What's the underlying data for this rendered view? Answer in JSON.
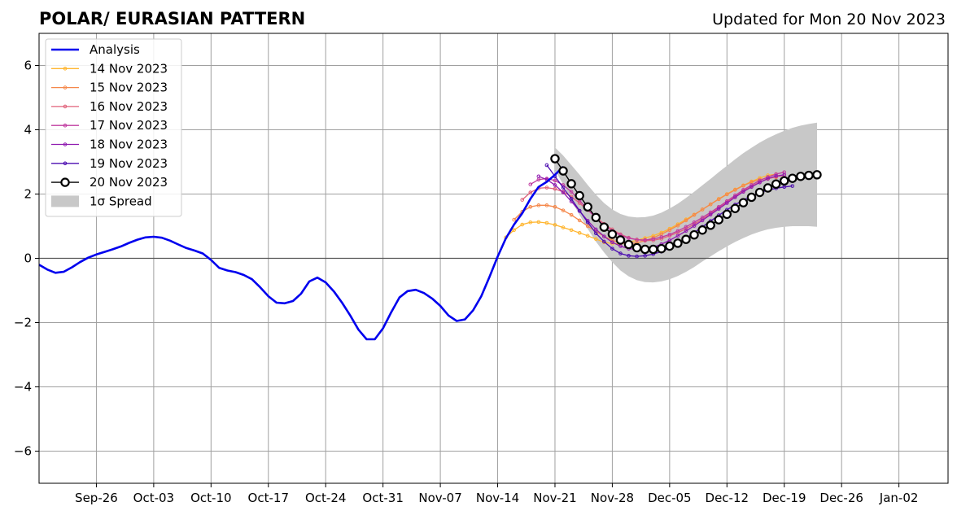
{
  "chart_data": {
    "type": "line",
    "title": "POLAR/ EURASIAN  PATTERN",
    "updated": "Updated for Mon 20 Nov 2023",
    "xlabel": "",
    "ylabel": "",
    "xlim": [
      "2023-09-19",
      "2024-01-08"
    ],
    "ylim": [
      -7,
      7
    ],
    "grid": true,
    "legend_position": "upper-left",
    "x_ticks": [
      {
        "date": "2023-09-26",
        "label": "Sep-26"
      },
      {
        "date": "2023-10-03",
        "label": "Oct-03"
      },
      {
        "date": "2023-10-10",
        "label": "Oct-10"
      },
      {
        "date": "2023-10-17",
        "label": "Oct-17"
      },
      {
        "date": "2023-10-24",
        "label": "Oct-24"
      },
      {
        "date": "2023-10-31",
        "label": "Oct-31"
      },
      {
        "date": "2023-11-07",
        "label": "Nov-07"
      },
      {
        "date": "2023-11-14",
        "label": "Nov-14"
      },
      {
        "date": "2023-11-21",
        "label": "Nov-21"
      },
      {
        "date": "2023-11-28",
        "label": "Nov-28"
      },
      {
        "date": "2023-12-05",
        "label": "Dec-05"
      },
      {
        "date": "2023-12-12",
        "label": "Dec-12"
      },
      {
        "date": "2023-12-19",
        "label": "Dec-19"
      },
      {
        "date": "2023-12-26",
        "label": "Dec-26"
      },
      {
        "date": "2024-01-02",
        "label": "Jan-02"
      }
    ],
    "y_ticks": [
      {
        "value": 6,
        "label": "6"
      },
      {
        "value": 4,
        "label": "4"
      },
      {
        "value": 2,
        "label": "2"
      },
      {
        "value": 0,
        "label": "0"
      },
      {
        "value": -2,
        "label": "−2"
      },
      {
        "value": -4,
        "label": "−4"
      },
      {
        "value": -6,
        "label": "−6"
      }
    ],
    "analysis": {
      "name": "Analysis",
      "color": "#0000ee",
      "start": "2023-09-19",
      "values": [
        -0.2,
        -0.35,
        -0.45,
        -0.42,
        -0.28,
        -0.12,
        0.02,
        0.12,
        0.2,
        0.28,
        0.37,
        0.48,
        0.58,
        0.65,
        0.67,
        0.64,
        0.55,
        0.43,
        0.32,
        0.24,
        0.15,
        -0.05,
        -0.3,
        -0.38,
        -0.43,
        -0.52,
        -0.65,
        -0.9,
        -1.18,
        -1.38,
        -1.4,
        -1.33,
        -1.1,
        -0.72,
        -0.6,
        -0.75,
        -1.03,
        -1.38,
        -1.78,
        -2.22,
        -2.52,
        -2.52,
        -2.18,
        -1.68,
        -1.22,
        -1.02,
        -0.98,
        -1.08,
        -1.25,
        -1.48,
        -1.78,
        -1.95,
        -1.9,
        -1.62,
        -1.18,
        -0.58,
        0.05,
        0.62,
        1.05,
        1.4,
        1.85,
        2.22,
        2.38,
        2.6,
        2.85
      ]
    },
    "forecasts": [
      {
        "name": "14 Nov 2023",
        "color": "#ffb52e",
        "start": "2023-11-15",
        "values": [
          0.65,
          0.88,
          1.05,
          1.12,
          1.13,
          1.1,
          1.04,
          0.96,
          0.88,
          0.79,
          0.7,
          0.6,
          0.5,
          0.46,
          0.45,
          0.5,
          0.56,
          0.63,
          0.7,
          0.8,
          0.92,
          1.06,
          1.21,
          1.36,
          1.52,
          1.68,
          1.85,
          2.0,
          2.14,
          2.27,
          2.39,
          2.5,
          2.58,
          2.62
        ]
      },
      {
        "name": "15 Nov 2023",
        "color": "#f5884b",
        "start": "2023-11-16",
        "values": [
          1.2,
          1.45,
          1.6,
          1.65,
          1.65,
          1.6,
          1.49,
          1.35,
          1.18,
          1.0,
          0.84,
          0.68,
          0.56,
          0.48,
          0.45,
          0.48,
          0.55,
          0.64,
          0.75,
          0.88,
          1.02,
          1.18,
          1.35,
          1.52,
          1.68,
          1.84,
          1.99,
          2.13,
          2.26,
          2.37,
          2.45,
          2.5,
          2.52
        ]
      },
      {
        "name": "16 Nov 2023",
        "color": "#e0617a",
        "start": "2023-11-17",
        "values": [
          1.82,
          2.05,
          2.18,
          2.2,
          2.16,
          2.07,
          1.92,
          1.72,
          1.5,
          1.28,
          1.07,
          0.9,
          0.75,
          0.64,
          0.58,
          0.55,
          0.56,
          0.61,
          0.7,
          0.8,
          0.92,
          1.06,
          1.22,
          1.39,
          1.57,
          1.75,
          1.92,
          2.09,
          2.24,
          2.37,
          2.47,
          2.54,
          2.58
        ]
      },
      {
        "name": "17 Nov 2023",
        "color": "#c03ba0",
        "start": "2023-11-18",
        "values": [
          2.3,
          2.45,
          2.48,
          2.42,
          2.28,
          2.07,
          1.8,
          1.52,
          1.25,
          1.02,
          0.85,
          0.72,
          0.63,
          0.58,
          0.57,
          0.6,
          0.66,
          0.74,
          0.85,
          0.98,
          1.12,
          1.27,
          1.43,
          1.6,
          1.78,
          1.96,
          2.13,
          2.28,
          2.42,
          2.53,
          2.62,
          2.68
        ]
      },
      {
        "name": "18 Nov 2023",
        "color": "#8f1bb0",
        "start": "2023-11-19",
        "values": [
          2.55,
          2.45,
          2.28,
          2.05,
          1.77,
          1.47,
          1.17,
          0.9,
          0.68,
          0.5,
          0.38,
          0.3,
          0.28,
          0.3,
          0.35,
          0.44,
          0.56,
          0.7,
          0.85,
          1.01,
          1.18,
          1.36,
          1.54,
          1.72,
          1.9,
          2.07,
          2.22,
          2.36,
          2.48,
          2.56,
          2.6
        ]
      },
      {
        "name": "19 Nov 2023",
        "color": "#4c0db0",
        "start": "2023-11-20",
        "values": [
          2.9,
          2.55,
          2.2,
          1.85,
          1.48,
          1.12,
          0.78,
          0.52,
          0.3,
          0.15,
          0.08,
          0.06,
          0.08,
          0.13,
          0.21,
          0.32,
          0.46,
          0.62,
          0.8,
          0.98,
          1.16,
          1.34,
          1.51,
          1.67,
          1.81,
          1.94,
          2.04,
          2.12,
          2.18,
          2.22,
          2.25
        ]
      },
      {
        "name": "20 Nov 2023",
        "color": "#000000",
        "start": "2023-11-21",
        "values": [
          3.1,
          2.72,
          2.32,
          1.95,
          1.6,
          1.27,
          0.97,
          0.75,
          0.57,
          0.43,
          0.33,
          0.28,
          0.28,
          0.3,
          0.38,
          0.47,
          0.59,
          0.73,
          0.88,
          1.03,
          1.2,
          1.37,
          1.55,
          1.73,
          1.9,
          2.05,
          2.19,
          2.31,
          2.41,
          2.49,
          2.55,
          2.58,
          2.6
        ]
      }
    ],
    "spread": {
      "name": "1σ Spread",
      "color": "#c8c8c8",
      "start": "2023-11-21",
      "upper": [
        3.45,
        3.2,
        2.9,
        2.6,
        2.28,
        1.98,
        1.72,
        1.52,
        1.38,
        1.3,
        1.27,
        1.28,
        1.33,
        1.42,
        1.55,
        1.7,
        1.88,
        2.07,
        2.27,
        2.47,
        2.68,
        2.88,
        3.08,
        3.27,
        3.44,
        3.6,
        3.74,
        3.86,
        3.97,
        4.06,
        4.13,
        4.18,
        4.22
      ],
      "lower": [
        2.75,
        2.3,
        1.8,
        1.35,
        0.92,
        0.52,
        0.18,
        -0.12,
        -0.38,
        -0.56,
        -0.68,
        -0.74,
        -0.75,
        -0.72,
        -0.65,
        -0.55,
        -0.42,
        -0.27,
        -0.1,
        0.06,
        0.22,
        0.37,
        0.51,
        0.63,
        0.74,
        0.83,
        0.9,
        0.95,
        0.98,
        1.0,
        1.0,
        1.0,
        0.98
      ]
    }
  }
}
